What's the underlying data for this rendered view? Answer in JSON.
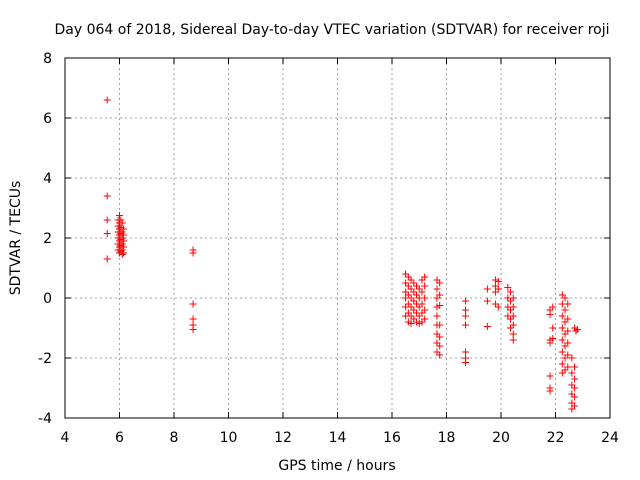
{
  "chart_data": {
    "type": "scatter",
    "title": "Day 064 of 2018, Sidereal Day-to-day VTEC variation (SDTVAR) for receiver roji",
    "xlabel": "GPS time / hours",
    "ylabel": "SDTVAR / TECUs",
    "xlim": [
      4,
      24
    ],
    "ylim": [
      -4,
      8
    ],
    "xticks": [
      4,
      6,
      8,
      10,
      12,
      14,
      16,
      18,
      20,
      22,
      24
    ],
    "yticks": [
      -4,
      -2,
      0,
      2,
      4,
      6,
      8
    ],
    "grid": true,
    "marker": "+",
    "color": "#ff0000",
    "series": [
      {
        "name": "SDTVAR",
        "points": [
          [
            5.55,
            6.6
          ],
          [
            5.55,
            3.4
          ],
          [
            5.55,
            2.6
          ],
          [
            5.55,
            2.15
          ],
          [
            5.55,
            1.3
          ],
          [
            5.95,
            2.6
          ],
          [
            5.95,
            2.4
          ],
          [
            5.95,
            2.2
          ],
          [
            5.95,
            2.0
          ],
          [
            5.95,
            1.8
          ],
          [
            5.95,
            1.6
          ],
          [
            6.0,
            2.75
          ],
          [
            6.0,
            2.5
          ],
          [
            6.0,
            2.3
          ],
          [
            6.0,
            2.1
          ],
          [
            6.0,
            1.9
          ],
          [
            6.0,
            1.7
          ],
          [
            6.0,
            1.5
          ],
          [
            6.05,
            2.6
          ],
          [
            6.05,
            2.35
          ],
          [
            6.05,
            2.15
          ],
          [
            6.05,
            1.95
          ],
          [
            6.05,
            1.75
          ],
          [
            6.05,
            1.55
          ],
          [
            6.1,
            2.5
          ],
          [
            6.1,
            2.2
          ],
          [
            6.1,
            2.0
          ],
          [
            6.1,
            1.8
          ],
          [
            6.1,
            1.6
          ],
          [
            6.1,
            1.45
          ],
          [
            6.15,
            2.3
          ],
          [
            6.15,
            2.1
          ],
          [
            6.15,
            1.9
          ],
          [
            6.15,
            1.7
          ],
          [
            6.15,
            1.5
          ],
          [
            8.7,
            1.6
          ],
          [
            8.7,
            1.5
          ],
          [
            8.7,
            -0.2
          ],
          [
            8.7,
            -0.7
          ],
          [
            8.7,
            -0.9
          ],
          [
            8.7,
            -1.05
          ],
          [
            16.5,
            0.8
          ],
          [
            16.5,
            0.5
          ],
          [
            16.5,
            0.2
          ],
          [
            16.5,
            0.0
          ],
          [
            16.5,
            -0.3
          ],
          [
            16.5,
            -0.6
          ],
          [
            16.6,
            0.7
          ],
          [
            16.6,
            0.4
          ],
          [
            16.6,
            0.1
          ],
          [
            16.6,
            -0.2
          ],
          [
            16.6,
            -0.5
          ],
          [
            16.6,
            -0.8
          ],
          [
            16.7,
            0.6
          ],
          [
            16.7,
            0.3
          ],
          [
            16.7,
            0.0
          ],
          [
            16.7,
            -0.3
          ],
          [
            16.7,
            -0.6
          ],
          [
            16.7,
            -0.85
          ],
          [
            16.8,
            0.5
          ],
          [
            16.8,
            0.2
          ],
          [
            16.8,
            -0.1
          ],
          [
            16.8,
            -0.4
          ],
          [
            16.8,
            -0.7
          ],
          [
            16.9,
            0.4
          ],
          [
            16.9,
            0.1
          ],
          [
            16.9,
            -0.2
          ],
          [
            16.9,
            -0.5
          ],
          [
            16.9,
            -0.8
          ],
          [
            17.0,
            0.3
          ],
          [
            17.0,
            0.0
          ],
          [
            17.0,
            -0.3
          ],
          [
            17.0,
            -0.6
          ],
          [
            17.0,
            -0.85
          ],
          [
            17.1,
            0.6
          ],
          [
            17.1,
            0.2
          ],
          [
            17.1,
            -0.2
          ],
          [
            17.1,
            -0.5
          ],
          [
            17.1,
            -0.8
          ],
          [
            17.2,
            0.7
          ],
          [
            17.2,
            0.4
          ],
          [
            17.2,
            0.0
          ],
          [
            17.2,
            -0.4
          ],
          [
            17.2,
            -0.7
          ],
          [
            17.65,
            0.6
          ],
          [
            17.65,
            0.3
          ],
          [
            17.65,
            0.0
          ],
          [
            17.65,
            -0.3
          ],
          [
            17.65,
            -0.6
          ],
          [
            17.65,
            -0.9
          ],
          [
            17.65,
            -1.2
          ],
          [
            17.65,
            -1.5
          ],
          [
            17.65,
            -1.8
          ],
          [
            17.75,
            0.5
          ],
          [
            17.75,
            0.1
          ],
          [
            17.75,
            -0.25
          ],
          [
            17.75,
            -0.9
          ],
          [
            17.75,
            -1.3
          ],
          [
            17.75,
            -1.6
          ],
          [
            17.75,
            -1.9
          ],
          [
            18.7,
            -0.1
          ],
          [
            18.7,
            -0.4
          ],
          [
            18.7,
            -0.6
          ],
          [
            18.7,
            -0.9
          ],
          [
            18.7,
            -1.8
          ],
          [
            18.7,
            -2.0
          ],
          [
            18.7,
            -2.15
          ],
          [
            19.5,
            0.3
          ],
          [
            19.5,
            -0.1
          ],
          [
            19.5,
            -0.95
          ],
          [
            19.8,
            0.6
          ],
          [
            19.8,
            0.4
          ],
          [
            19.8,
            0.2
          ],
          [
            19.8,
            -0.2
          ],
          [
            19.9,
            0.55
          ],
          [
            19.9,
            0.3
          ],
          [
            19.9,
            -0.3
          ],
          [
            20.25,
            0.35
          ],
          [
            20.25,
            0.0
          ],
          [
            20.25,
            -0.3
          ],
          [
            20.25,
            -0.6
          ],
          [
            20.35,
            0.2
          ],
          [
            20.35,
            -0.1
          ],
          [
            20.35,
            -0.4
          ],
          [
            20.35,
            -0.7
          ],
          [
            20.35,
            -1.0
          ],
          [
            20.45,
            0.0
          ],
          [
            20.45,
            -0.3
          ],
          [
            20.45,
            -0.6
          ],
          [
            20.45,
            -0.9
          ],
          [
            20.45,
            -1.2
          ],
          [
            20.45,
            -1.4
          ],
          [
            21.8,
            -0.4
          ],
          [
            21.8,
            -0.55
          ],
          [
            21.8,
            -1.4
          ],
          [
            21.8,
            -1.5
          ],
          [
            21.8,
            -2.6
          ],
          [
            21.8,
            -3.0
          ],
          [
            21.8,
            -3.1
          ],
          [
            21.9,
            -0.3
          ],
          [
            21.9,
            -1.0
          ],
          [
            21.9,
            -1.35
          ],
          [
            22.25,
            0.1
          ],
          [
            22.25,
            -0.2
          ],
          [
            22.25,
            -0.6
          ],
          [
            22.25,
            -1.0
          ],
          [
            22.25,
            -1.4
          ],
          [
            22.25,
            -1.8
          ],
          [
            22.25,
            -2.2
          ],
          [
            22.25,
            -2.5
          ],
          [
            22.35,
            0.0
          ],
          [
            22.35,
            -0.4
          ],
          [
            22.35,
            -0.8
          ],
          [
            22.35,
            -1.2
          ],
          [
            22.35,
            -1.6
          ],
          [
            22.35,
            -2.0
          ],
          [
            22.35,
            -2.4
          ],
          [
            22.45,
            -0.2
          ],
          [
            22.45,
            -0.7
          ],
          [
            22.45,
            -1.1
          ],
          [
            22.45,
            -1.5
          ],
          [
            22.45,
            -1.9
          ],
          [
            22.45,
            -2.3
          ],
          [
            22.6,
            -2.0
          ],
          [
            22.6,
            -2.5
          ],
          [
            22.6,
            -2.9
          ],
          [
            22.6,
            -3.2
          ],
          [
            22.6,
            -3.5
          ],
          [
            22.6,
            -3.7
          ],
          [
            22.7,
            -2.3
          ],
          [
            22.7,
            -2.7
          ],
          [
            22.7,
            -3.0
          ],
          [
            22.7,
            -3.3
          ],
          [
            22.7,
            -3.6
          ],
          [
            22.7,
            -1.0
          ],
          [
            22.75,
            -1.1
          ],
          [
            22.8,
            -1.05
          ]
        ]
      }
    ]
  }
}
